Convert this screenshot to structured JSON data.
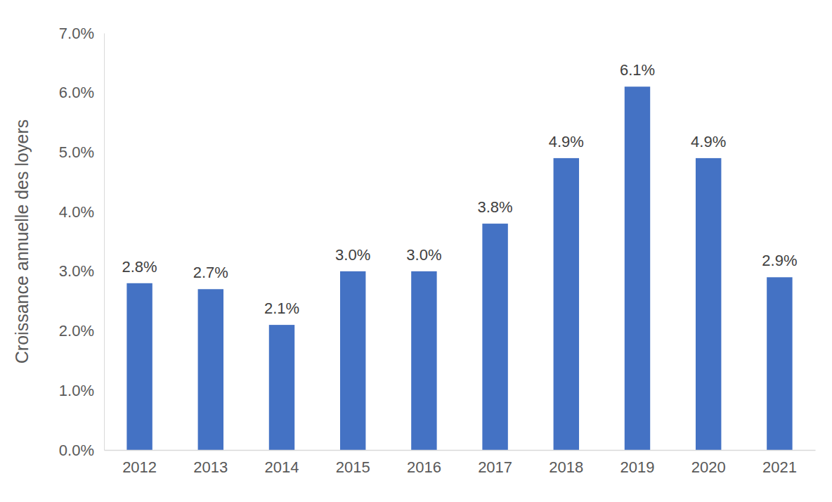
{
  "chart_data": {
    "type": "bar",
    "y_label": "Croissance annuelle des loyers",
    "categories": [
      "2012",
      "2013",
      "2014",
      "2015",
      "2016",
      "2017",
      "2018",
      "2019",
      "2020",
      "2021"
    ],
    "values": [
      2.8,
      2.7,
      2.1,
      3.0,
      3.0,
      3.8,
      4.9,
      6.1,
      4.9,
      2.9
    ],
    "value_labels": [
      "2.8%",
      "2.7%",
      "2.1%",
      "3.0%",
      "3.0%",
      "3.8%",
      "4.9%",
      "6.1%",
      "4.9%",
      "2.9%"
    ],
    "data_labels": true,
    "color": "#4472c4",
    "grid": false,
    "ylim": [
      0,
      7
    ],
    "yticks": [
      {
        "value": 0,
        "label": "0.0%"
      },
      {
        "value": 1,
        "label": "1.0%"
      },
      {
        "value": 2,
        "label": "2.0%"
      },
      {
        "value": 3,
        "label": "3.0%"
      },
      {
        "value": 4,
        "label": "4.0%"
      },
      {
        "value": 5,
        "label": "5.0%"
      },
      {
        "value": 6,
        "label": "6.0%"
      },
      {
        "value": 7,
        "label": "7.0%"
      }
    ]
  }
}
